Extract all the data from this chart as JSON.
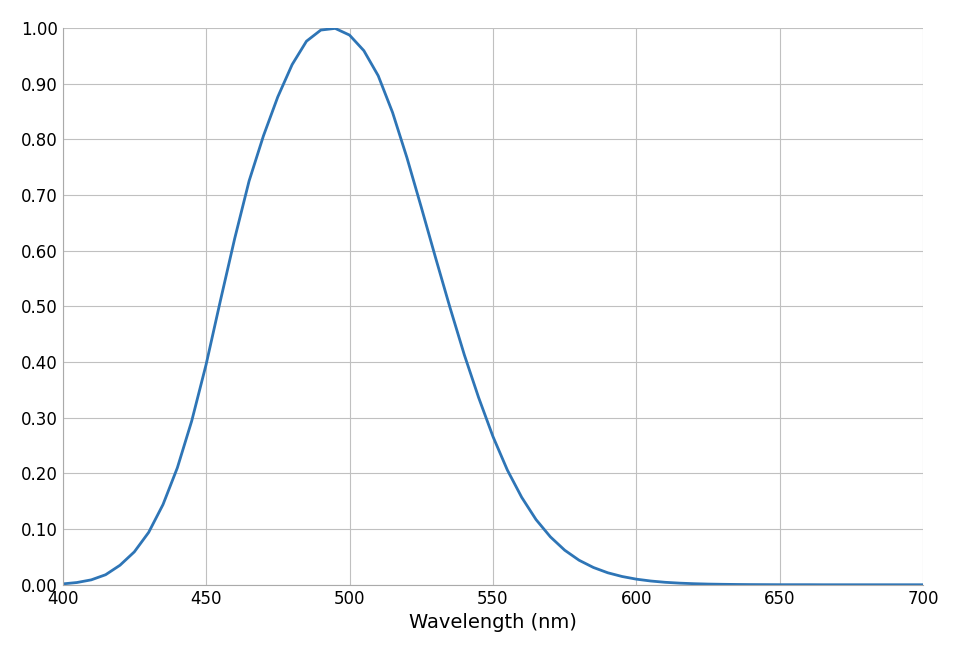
{
  "title": "",
  "xlabel": "Wavelength (nm)",
  "ylabel": "",
  "xlim": [
    400,
    700
  ],
  "ylim": [
    0.0,
    1.0
  ],
  "xticks": [
    400,
    450,
    500,
    550,
    600,
    650,
    700
  ],
  "yticks": [
    0.0,
    0.1,
    0.2,
    0.3,
    0.4,
    0.5,
    0.6,
    0.7,
    0.8,
    0.9,
    1.0
  ],
  "line_color": "#2e75b6",
  "line_width": 2.0,
  "background_color": "#ffffff",
  "grid_color": "#c0c0c0",
  "xlabel_fontsize": 14,
  "tick_fontsize": 12,
  "wavelengths": [
    400,
    405,
    410,
    415,
    420,
    425,
    430,
    435,
    440,
    445,
    450,
    455,
    460,
    465,
    470,
    475,
    480,
    485,
    490,
    495,
    500,
    505,
    510,
    515,
    520,
    525,
    530,
    535,
    540,
    545,
    550,
    555,
    560,
    565,
    570,
    575,
    580,
    585,
    590,
    595,
    600,
    605,
    610,
    615,
    620,
    625,
    630,
    635,
    640,
    645,
    650,
    655,
    660,
    665,
    670,
    675,
    680,
    685,
    690,
    695,
    700
  ],
  "sensitivity": [
    0.0015,
    0.004,
    0.0088,
    0.018,
    0.035,
    0.059,
    0.094,
    0.144,
    0.21,
    0.294,
    0.395,
    0.51,
    0.622,
    0.725,
    0.806,
    0.876,
    0.934,
    0.976,
    0.996,
    0.999,
    0.987,
    0.959,
    0.914,
    0.848,
    0.767,
    0.678,
    0.587,
    0.498,
    0.413,
    0.336,
    0.266,
    0.206,
    0.157,
    0.117,
    0.086,
    0.062,
    0.044,
    0.031,
    0.0215,
    0.0148,
    0.01,
    0.0067,
    0.0044,
    0.0029,
    0.0019,
    0.0012,
    0.0008,
    0.0005,
    0.0003,
    0.0002,
    0.0001,
    0.0001,
    0.0001,
    0.0,
    0.0,
    0.0,
    0.0,
    0.0,
    0.0,
    0.0,
    0.0
  ]
}
